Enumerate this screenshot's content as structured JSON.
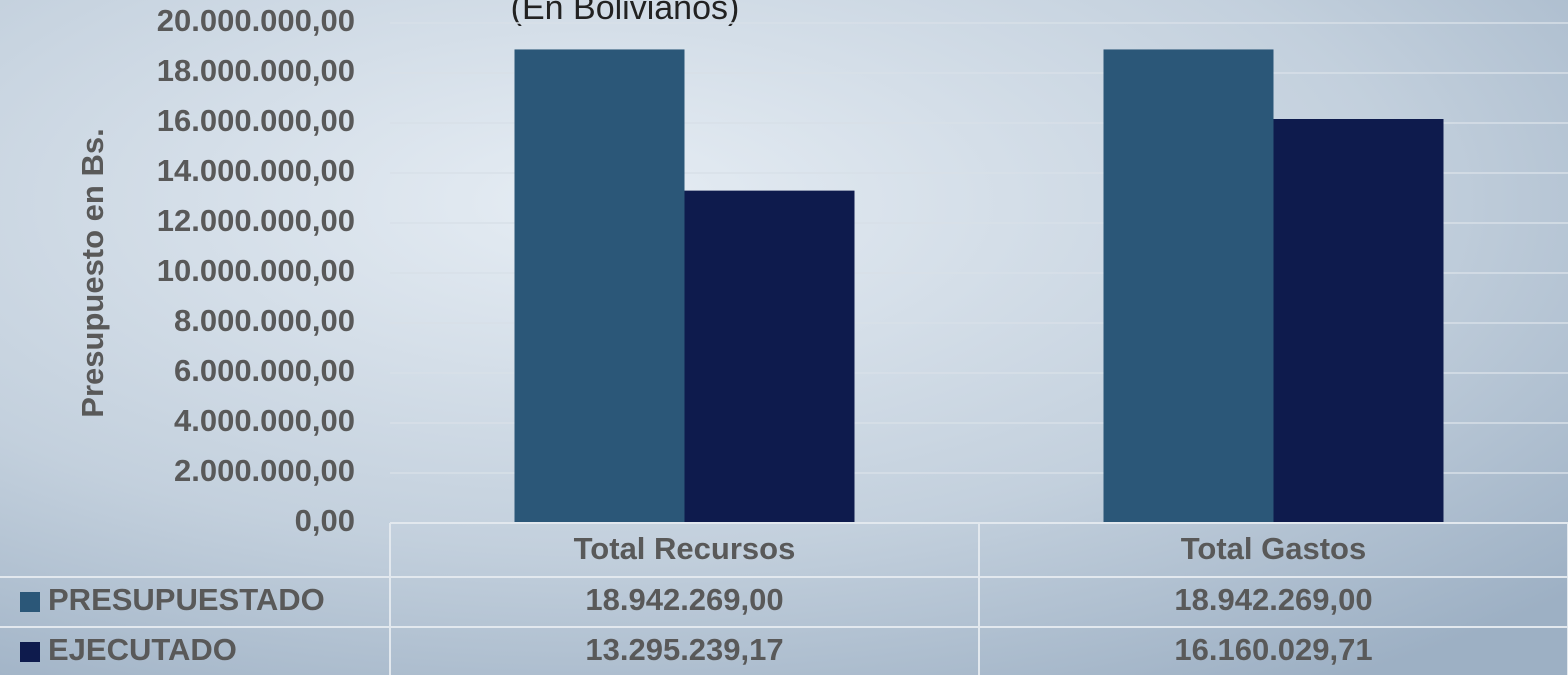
{
  "chart_data": {
    "type": "bar",
    "subtitle": "(En Bolivianos)",
    "y_label": "Presupuesto en Bs.",
    "categories": [
      "Total Recursos",
      "Total Gastos"
    ],
    "series": [
      {
        "name": "PRESUPUESTADO",
        "color": "#2b5778",
        "values": [
          18942269.0,
          18942269.0
        ],
        "value_labels": [
          "18.942.269,00",
          "18.942.269,00"
        ]
      },
      {
        "name": "EJECUTADO",
        "color": "#0e1b4d",
        "values": [
          13295239.17,
          16160029.71
        ],
        "value_labels": [
          "13.295.239,17",
          "16.160.029,71"
        ]
      }
    ],
    "ylim": [
      0,
      20000000
    ],
    "yticks": [
      {
        "value": 0,
        "label": "0,00"
      },
      {
        "value": 2000000,
        "label": "2.000.000,00"
      },
      {
        "value": 4000000,
        "label": "4.000.000,00"
      },
      {
        "value": 6000000,
        "label": "6.000.000,00"
      },
      {
        "value": 8000000,
        "label": "8.000.000,00"
      },
      {
        "value": 10000000,
        "label": "10.000.000,00"
      },
      {
        "value": 12000000,
        "label": "12.000.000,00"
      },
      {
        "value": 14000000,
        "label": "14.000.000,00"
      },
      {
        "value": 16000000,
        "label": "16.000.000,00"
      },
      {
        "value": 18000000,
        "label": "18.000.000,00"
      },
      {
        "value": 20000000,
        "label": "20.000.000,00"
      }
    ],
    "grid": true
  }
}
